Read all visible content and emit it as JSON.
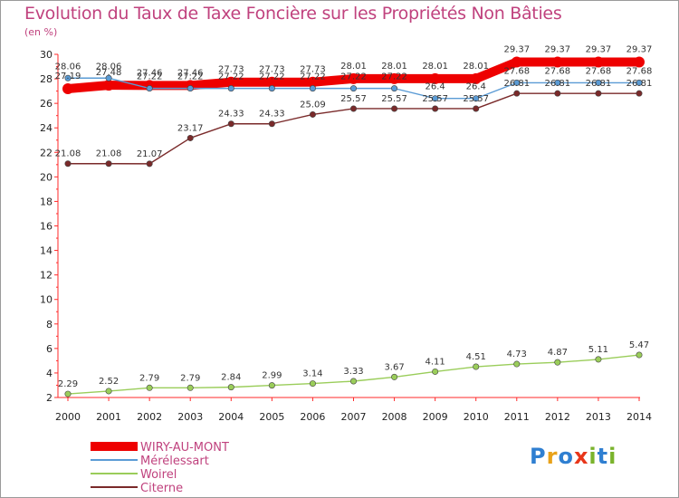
{
  "header": {
    "title": "Evolution du Taux de Taxe Foncière sur les Propriétés Non Bâties",
    "unit": "(en %)"
  },
  "logo": {
    "text": "Proxiti",
    "colors": [
      "#2f7fd1",
      "#e8a21a",
      "#2f7fd1",
      "#e8361a",
      "#7ab32c",
      "#2f7fd1",
      "#7ab32c"
    ]
  },
  "chart_data": {
    "type": "line",
    "title": "Evolution du Taux de Taxe Foncière sur les Propriétés Non Bâties",
    "ylabel": "(en %)",
    "xlabel": "",
    "x": [
      "2000",
      "2001",
      "2002",
      "2003",
      "2004",
      "2005",
      "2006",
      "2007",
      "2008",
      "2009",
      "2010",
      "2011",
      "2012",
      "2013",
      "2014"
    ],
    "ylim": [
      2,
      30
    ],
    "yticks": [
      "2",
      "4",
      "6",
      "8",
      "10",
      "12",
      "14",
      "16",
      "18",
      "20",
      "22",
      "24",
      "26",
      "28",
      "30"
    ],
    "grid": false,
    "legend_position": "bottom-left",
    "series": [
      {
        "name": "WIRY-AU-MONT",
        "color": "#ee0000",
        "values": [
          27.19,
          27.48,
          27.46,
          27.46,
          27.73,
          27.73,
          27.73,
          28.01,
          28.01,
          28.01,
          28.01,
          29.37,
          29.37,
          29.37,
          29.37
        ],
        "labels": [
          "27.19",
          "27.48",
          "27.46",
          "27.46",
          "27.73",
          "27.73",
          "27.73",
          "28.01",
          "28.01",
          "28.01",
          "28.01",
          "29.37",
          "29.37",
          "29.37",
          "29.37"
        ]
      },
      {
        "name": "Mérélessart",
        "color": "#5a9bd5",
        "values": [
          28.06,
          28.06,
          27.22,
          27.22,
          27.22,
          27.22,
          27.22,
          27.22,
          27.22,
          26.4,
          26.4,
          27.68,
          27.68,
          27.68,
          27.68
        ],
        "labels": [
          "28.06",
          "28.06",
          "27.22",
          "27.22",
          "27.22",
          "27.22",
          "27.22",
          "27.22",
          "27.22",
          "26.4",
          "26.4",
          "27.68",
          "27.68",
          "27.68",
          "27.68"
        ]
      },
      {
        "name": "Woirel",
        "color": "#9acd5a",
        "values": [
          2.29,
          2.52,
          2.79,
          2.79,
          2.84,
          2.99,
          3.14,
          3.33,
          3.67,
          4.11,
          4.51,
          4.73,
          4.87,
          5.11,
          5.47
        ],
        "labels": [
          "2.29",
          "2.52",
          "2.79",
          "2.79",
          "2.84",
          "2.99",
          "3.14",
          "3.33",
          "3.67",
          "4.11",
          "4.51",
          "4.73",
          "4.87",
          "5.11",
          "5.47"
        ]
      },
      {
        "name": "Citerne",
        "color": "#7a2a2a",
        "values": [
          21.08,
          21.08,
          21.07,
          23.17,
          24.33,
          24.33,
          25.09,
          25.57,
          25.57,
          25.57,
          25.57,
          26.81,
          26.81,
          26.81,
          26.81
        ],
        "labels": [
          "21.08",
          "21.08",
          "21.07",
          "23.17",
          "24.33",
          "24.33",
          "25.09",
          "25.57",
          "25.57",
          "25.57",
          "25.57",
          "26.81",
          "26.81",
          "26.81",
          "26.81"
        ]
      }
    ]
  }
}
